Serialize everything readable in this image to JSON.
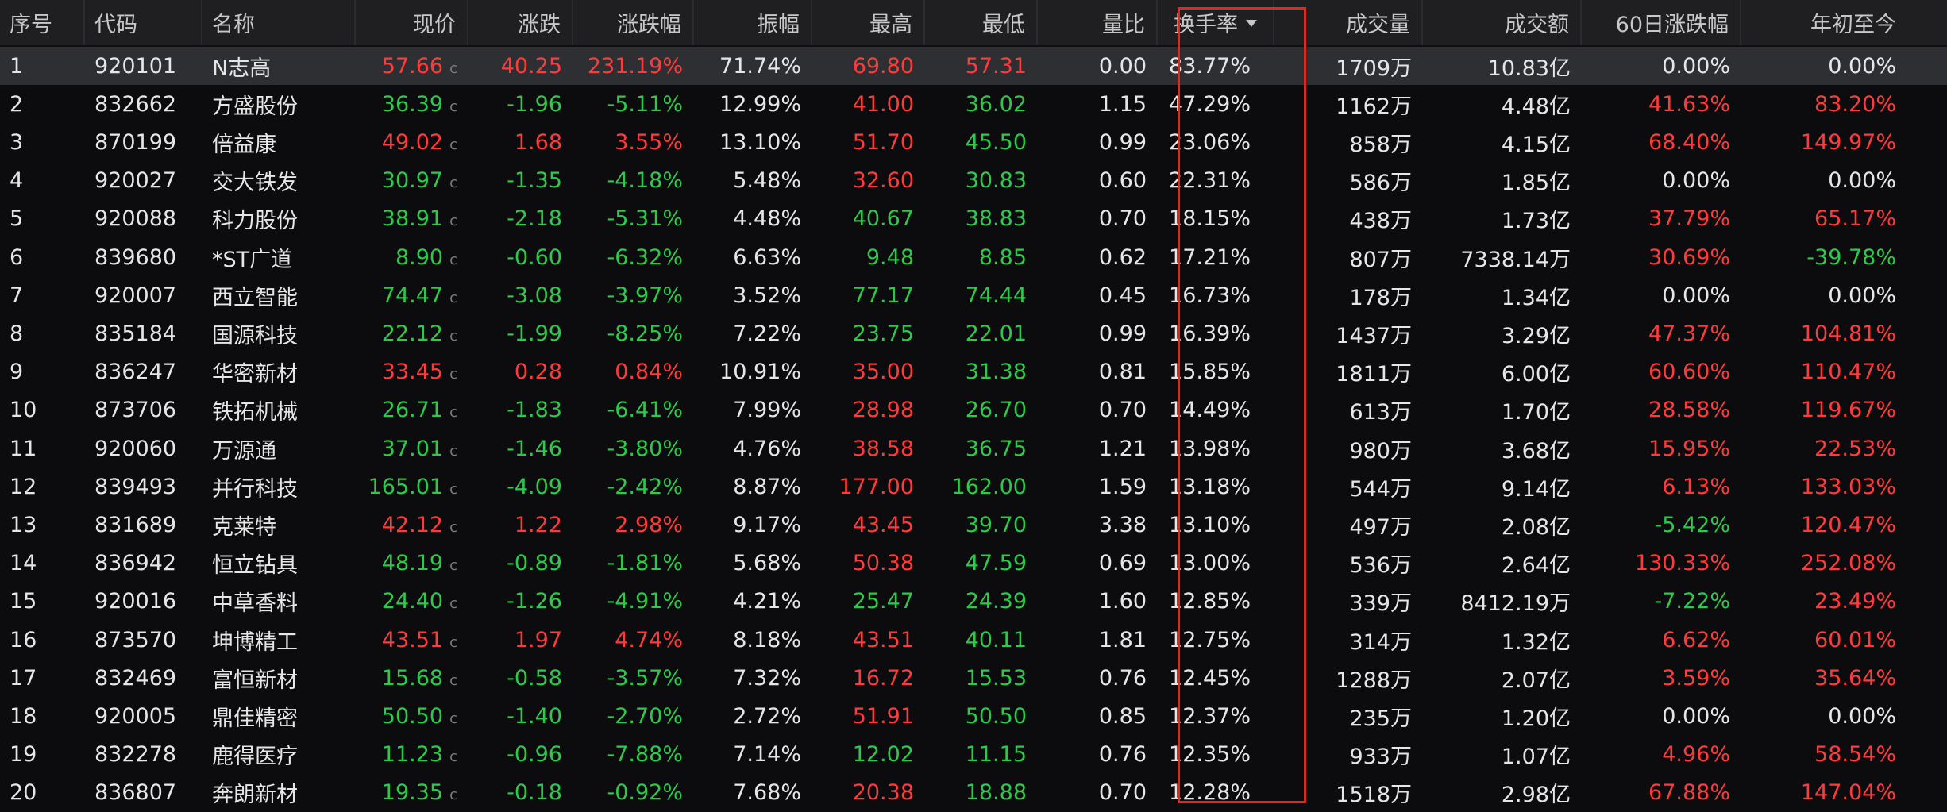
{
  "colors": {
    "up": "#ff3a3a",
    "down": "#2ec84a",
    "highlight": "#e0281c"
  },
  "price_suffix": "c",
  "sorted_column": "换手率",
  "header": {
    "idx": "序号",
    "code": "代码",
    "name": "名称",
    "price": "现价",
    "change": "涨跌",
    "pct": "涨跌幅",
    "amp": "振幅",
    "high": "最高",
    "low": "最低",
    "vr": "量比",
    "turnover": "换手率",
    "vol": "成交量",
    "amount": "成交额",
    "d60": "60日涨跌幅",
    "ytd": "年初至今"
  },
  "rows": [
    {
      "idx": "1",
      "code": "920101",
      "name": "N志高",
      "price": "57.66",
      "change": "40.25",
      "pct": "231.19%",
      "amp": "71.74%",
      "high": "69.80",
      "low": "57.31",
      "vr": "0.00",
      "turnover": "83.77%",
      "vol": "1709万",
      "amount": "10.83亿",
      "d60": "0.00%",
      "ytd": "0.00%"
    },
    {
      "idx": "2",
      "code": "832662",
      "name": "方盛股份",
      "price": "36.39",
      "change": "-1.96",
      "pct": "-5.11%",
      "amp": "12.99%",
      "high": "41.00",
      "low": "36.02",
      "vr": "1.15",
      "turnover": "47.29%",
      "vol": "1162万",
      "amount": "4.48亿",
      "d60": "41.63%",
      "ytd": "83.20%"
    },
    {
      "idx": "3",
      "code": "870199",
      "name": "倍益康",
      "price": "49.02",
      "change": "1.68",
      "pct": "3.55%",
      "amp": "13.10%",
      "high": "51.70",
      "low": "45.50",
      "vr": "0.99",
      "turnover": "23.06%",
      "vol": "858万",
      "amount": "4.15亿",
      "d60": "68.40%",
      "ytd": "149.97%"
    },
    {
      "idx": "4",
      "code": "920027",
      "name": "交大铁发",
      "price": "30.97",
      "change": "-1.35",
      "pct": "-4.18%",
      "amp": "5.48%",
      "high": "32.60",
      "low": "30.83",
      "vr": "0.60",
      "turnover": "22.31%",
      "vol": "586万",
      "amount": "1.85亿",
      "d60": "0.00%",
      "ytd": "0.00%"
    },
    {
      "idx": "5",
      "code": "920088",
      "name": "科力股份",
      "price": "38.91",
      "change": "-2.18",
      "pct": "-5.31%",
      "amp": "4.48%",
      "high": "40.67",
      "low": "38.83",
      "vr": "0.70",
      "turnover": "18.15%",
      "vol": "438万",
      "amount": "1.73亿",
      "d60": "37.79%",
      "ytd": "65.17%"
    },
    {
      "idx": "6",
      "code": "839680",
      "name": "*ST广道",
      "price": "8.90",
      "change": "-0.60",
      "pct": "-6.32%",
      "amp": "6.63%",
      "high": "9.48",
      "low": "8.85",
      "vr": "0.62",
      "turnover": "17.21%",
      "vol": "807万",
      "amount": "7338.14万",
      "d60": "30.69%",
      "ytd": "-39.78%"
    },
    {
      "idx": "7",
      "code": "920007",
      "name": "西立智能",
      "price": "74.47",
      "change": "-3.08",
      "pct": "-3.97%",
      "amp": "3.52%",
      "high": "77.17",
      "low": "74.44",
      "vr": "0.45",
      "turnover": "16.73%",
      "vol": "178万",
      "amount": "1.34亿",
      "d60": "0.00%",
      "ytd": "0.00%"
    },
    {
      "idx": "8",
      "code": "835184",
      "name": "国源科技",
      "price": "22.12",
      "change": "-1.99",
      "pct": "-8.25%",
      "amp": "7.22%",
      "high": "23.75",
      "low": "22.01",
      "vr": "0.99",
      "turnover": "16.39%",
      "vol": "1437万",
      "amount": "3.29亿",
      "d60": "47.37%",
      "ytd": "104.81%"
    },
    {
      "idx": "9",
      "code": "836247",
      "name": "华密新材",
      "price": "33.45",
      "change": "0.28",
      "pct": "0.84%",
      "amp": "10.91%",
      "high": "35.00",
      "low": "31.38",
      "vr": "0.81",
      "turnover": "15.85%",
      "vol": "1811万",
      "amount": "6.00亿",
      "d60": "60.60%",
      "ytd": "110.47%"
    },
    {
      "idx": "10",
      "code": "873706",
      "name": "铁拓机械",
      "price": "26.71",
      "change": "-1.83",
      "pct": "-6.41%",
      "amp": "7.99%",
      "high": "28.98",
      "low": "26.70",
      "vr": "0.70",
      "turnover": "14.49%",
      "vol": "613万",
      "amount": "1.70亿",
      "d60": "28.58%",
      "ytd": "119.67%"
    },
    {
      "idx": "11",
      "code": "920060",
      "name": "万源通",
      "price": "37.01",
      "change": "-1.46",
      "pct": "-3.80%",
      "amp": "4.76%",
      "high": "38.58",
      "low": "36.75",
      "vr": "1.21",
      "turnover": "13.98%",
      "vol": "980万",
      "amount": "3.68亿",
      "d60": "15.95%",
      "ytd": "22.53%"
    },
    {
      "idx": "12",
      "code": "839493",
      "name": "并行科技",
      "price": "165.01",
      "change": "-4.09",
      "pct": "-2.42%",
      "amp": "8.87%",
      "high": "177.00",
      "low": "162.00",
      "vr": "1.59",
      "turnover": "13.18%",
      "vol": "544万",
      "amount": "9.14亿",
      "d60": "6.13%",
      "ytd": "133.03%"
    },
    {
      "idx": "13",
      "code": "831689",
      "name": "克莱特",
      "price": "42.12",
      "change": "1.22",
      "pct": "2.98%",
      "amp": "9.17%",
      "high": "43.45",
      "low": "39.70",
      "vr": "3.38",
      "turnover": "13.10%",
      "vol": "497万",
      "amount": "2.08亿",
      "d60": "-5.42%",
      "ytd": "120.47%"
    },
    {
      "idx": "14",
      "code": "836942",
      "name": "恒立钻具",
      "price": "48.19",
      "change": "-0.89",
      "pct": "-1.81%",
      "amp": "5.68%",
      "high": "50.38",
      "low": "47.59",
      "vr": "0.69",
      "turnover": "13.00%",
      "vol": "536万",
      "amount": "2.64亿",
      "d60": "130.33%",
      "ytd": "252.08%"
    },
    {
      "idx": "15",
      "code": "920016",
      "name": "中草香料",
      "price": "24.40",
      "change": "-1.26",
      "pct": "-4.91%",
      "amp": "4.21%",
      "high": "25.47",
      "low": "24.39",
      "vr": "1.60",
      "turnover": "12.85%",
      "vol": "339万",
      "amount": "8412.19万",
      "d60": "-7.22%",
      "ytd": "23.49%"
    },
    {
      "idx": "16",
      "code": "873570",
      "name": "坤博精工",
      "price": "43.51",
      "change": "1.97",
      "pct": "4.74%",
      "amp": "8.18%",
      "high": "43.51",
      "low": "40.11",
      "vr": "1.81",
      "turnover": "12.75%",
      "vol": "314万",
      "amount": "1.32亿",
      "d60": "6.62%",
      "ytd": "60.01%"
    },
    {
      "idx": "17",
      "code": "832469",
      "name": "富恒新材",
      "price": "15.68",
      "change": "-0.58",
      "pct": "-3.57%",
      "amp": "7.32%",
      "high": "16.72",
      "low": "15.53",
      "vr": "0.76",
      "turnover": "12.45%",
      "vol": "1288万",
      "amount": "2.07亿",
      "d60": "3.59%",
      "ytd": "35.64%"
    },
    {
      "idx": "18",
      "code": "920005",
      "name": "鼎佳精密",
      "price": "50.50",
      "change": "-1.40",
      "pct": "-2.70%",
      "amp": "2.72%",
      "high": "51.91",
      "low": "50.50",
      "vr": "0.85",
      "turnover": "12.37%",
      "vol": "235万",
      "amount": "1.20亿",
      "d60": "0.00%",
      "ytd": "0.00%"
    },
    {
      "idx": "19",
      "code": "832278",
      "name": "鹿得医疗",
      "price": "11.23",
      "change": "-0.96",
      "pct": "-7.88%",
      "amp": "7.14%",
      "high": "12.02",
      "low": "11.15",
      "vr": "0.76",
      "turnover": "12.35%",
      "vol": "933万",
      "amount": "1.07亿",
      "d60": "4.96%",
      "ytd": "58.54%"
    },
    {
      "idx": "20",
      "code": "836807",
      "name": "奔朗新材",
      "price": "19.35",
      "change": "-0.18",
      "pct": "-0.92%",
      "amp": "7.68%",
      "high": "20.38",
      "low": "18.88",
      "vr": "0.70",
      "turnover": "12.28%",
      "vol": "1518万",
      "amount": "2.98亿",
      "d60": "67.88%",
      "ytd": "147.04%"
    }
  ]
}
